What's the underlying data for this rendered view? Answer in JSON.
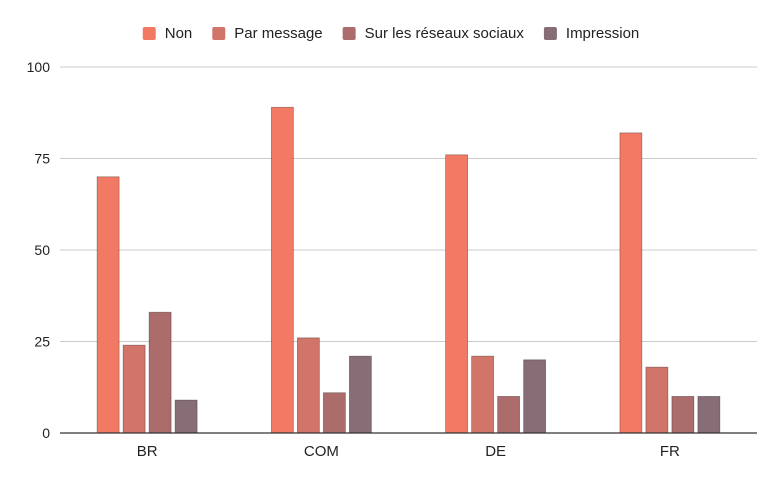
{
  "chart_data": {
    "type": "bar",
    "categories": [
      "BR",
      "COM",
      "DE",
      "FR"
    ],
    "series": [
      {
        "name": "Non",
        "values": [
          70,
          89,
          76,
          82
        ],
        "color": "#f27a65"
      },
      {
        "name": "Par message",
        "values": [
          24,
          26,
          21,
          18
        ],
        "color": "#d1746a"
      },
      {
        "name": "Sur les réseaux sociaux",
        "values": [
          33,
          11,
          10,
          10
        ],
        "color": "#ad6c6c"
      },
      {
        "name": "Impression",
        "values": [
          9,
          21,
          20,
          10
        ],
        "color": "#876e76"
      }
    ],
    "y_ticks": [
      "0",
      "25",
      "50",
      "75",
      "100"
    ],
    "ylim": [
      0,
      100
    ],
    "title": "",
    "xlabel": "",
    "ylabel": "",
    "grid": true,
    "legend_position": "top"
  }
}
